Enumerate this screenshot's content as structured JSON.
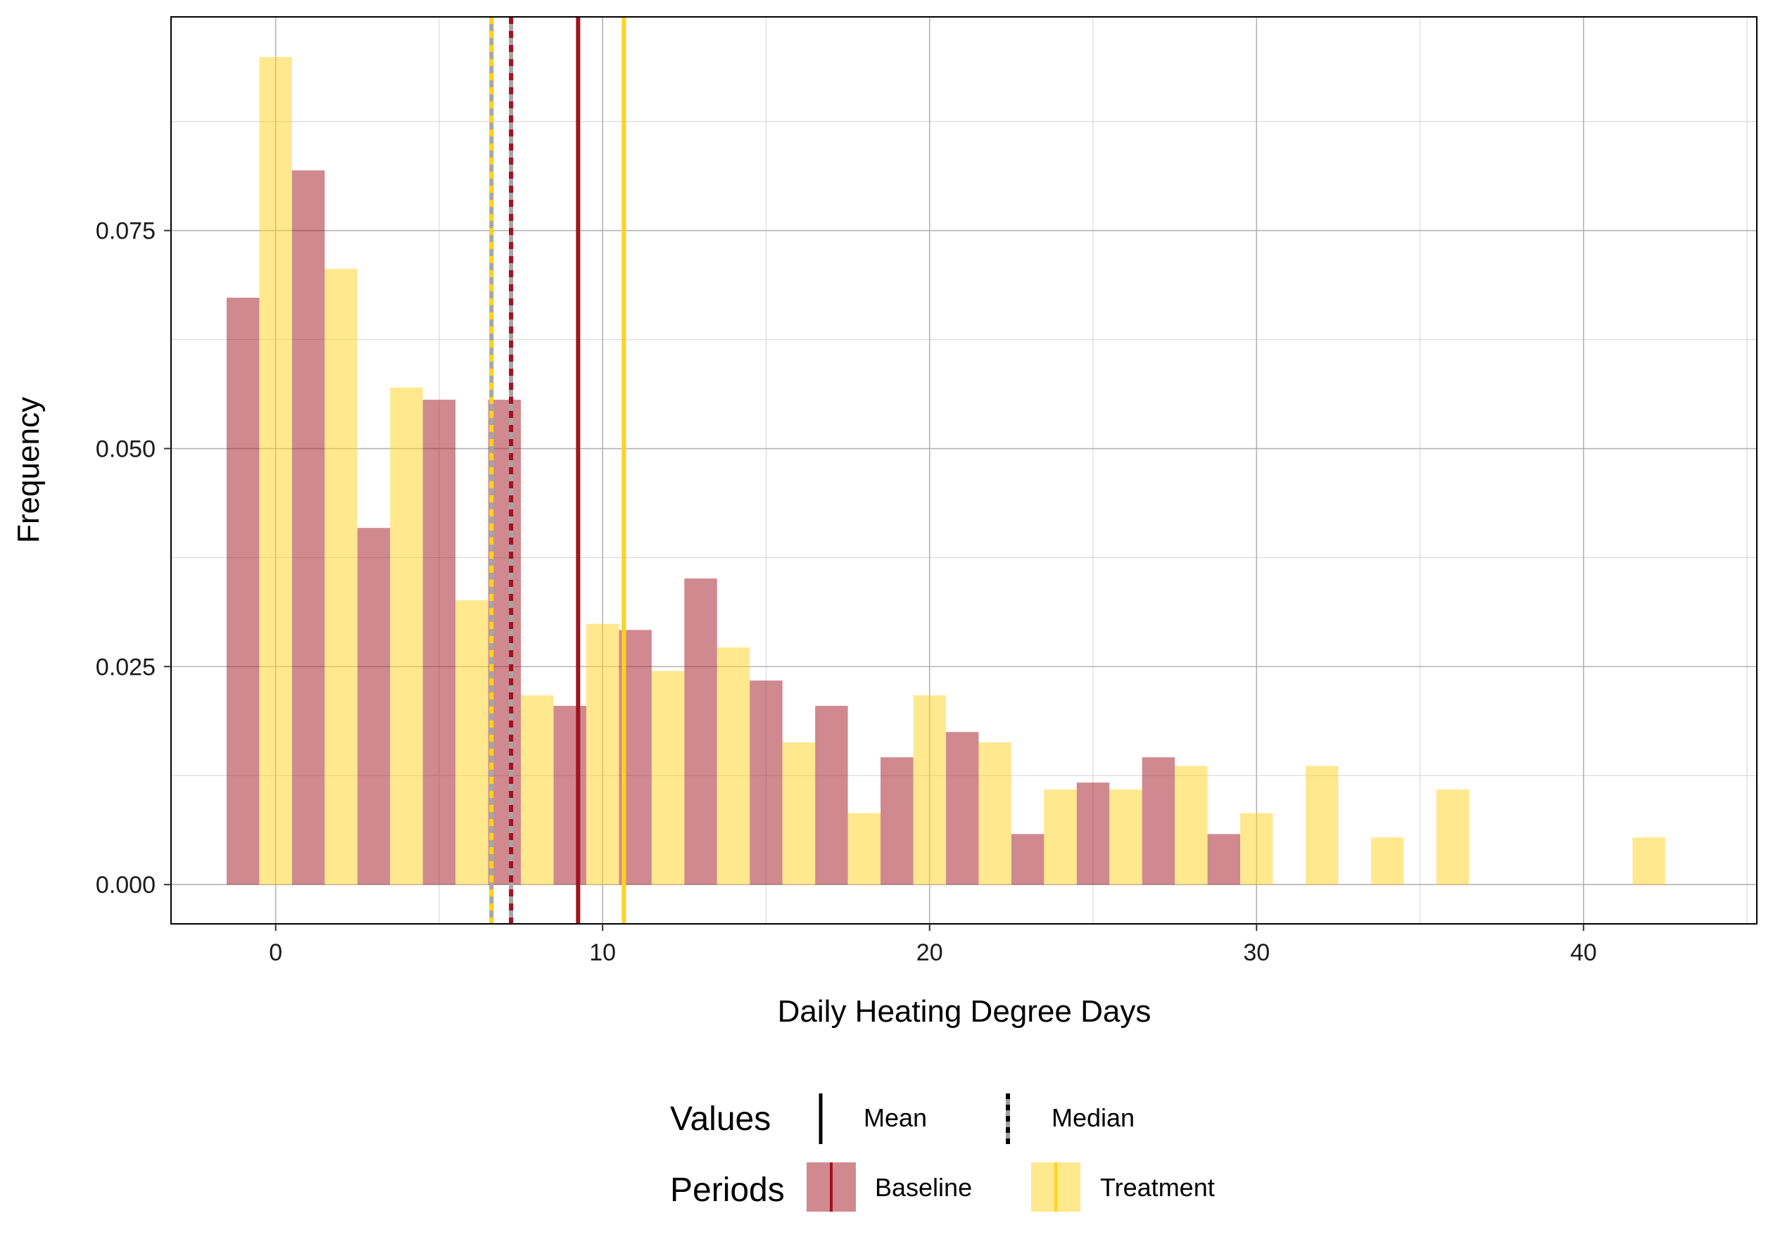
{
  "chart_data": {
    "type": "bar",
    "title": "",
    "xlabel": "Daily Heating Degree Days",
    "ylabel": "Frequency",
    "xlim": [
      -3.2,
      45.3
    ],
    "ylim": [
      -0.0045,
      0.0995
    ],
    "x_ticks": [
      0,
      10,
      20,
      30,
      40
    ],
    "x_tick_labels": [
      "0",
      "10",
      "20",
      "30",
      "40"
    ],
    "y_ticks": [
      0,
      0.025,
      0.05,
      0.075
    ],
    "y_tick_labels": [
      "0.000",
      "0.025",
      "0.050",
      "0.075"
    ],
    "grid": true,
    "bin_width": 1,
    "bar_opacity": 0.5,
    "series": [
      {
        "name": "Baseline",
        "color": "#A0131F",
        "bars": [
          {
            "x": -1,
            "value": 0.0673
          },
          {
            "x": 1,
            "value": 0.0819
          },
          {
            "x": 3,
            "value": 0.0409
          },
          {
            "x": 5,
            "value": 0.0556
          },
          {
            "x": 7,
            "value": 0.0556
          },
          {
            "x": 9,
            "value": 0.0205
          },
          {
            "x": 11,
            "value": 0.0292
          },
          {
            "x": 13,
            "value": 0.0351
          },
          {
            "x": 15,
            "value": 0.0234
          },
          {
            "x": 17,
            "value": 0.0205
          },
          {
            "x": 19,
            "value": 0.0146
          },
          {
            "x": 21,
            "value": 0.0175
          },
          {
            "x": 23,
            "value": 0.0058
          },
          {
            "x": 25,
            "value": 0.0117
          },
          {
            "x": 27,
            "value": 0.0146
          },
          {
            "x": 29,
            "value": 0.0058
          }
        ],
        "mean": 9.25,
        "median": 7.2
      },
      {
        "name": "Treatment",
        "color": "#FFD21E",
        "bars": [
          {
            "x": 0,
            "value": 0.0949
          },
          {
            "x": 2,
            "value": 0.0706
          },
          {
            "x": 4,
            "value": 0.057
          },
          {
            "x": 6,
            "value": 0.0326
          },
          {
            "x": 8,
            "value": 0.0217
          },
          {
            "x": 10,
            "value": 0.0299
          },
          {
            "x": 12,
            "value": 0.0245
          },
          {
            "x": 14,
            "value": 0.0272
          },
          {
            "x": 16,
            "value": 0.0163
          },
          {
            "x": 18,
            "value": 0.0082
          },
          {
            "x": 20,
            "value": 0.0217
          },
          {
            "x": 22,
            "value": 0.0163
          },
          {
            "x": 24,
            "value": 0.0109
          },
          {
            "x": 26,
            "value": 0.0109
          },
          {
            "x": 28,
            "value": 0.0136
          },
          {
            "x": 30,
            "value": 0.0082
          },
          {
            "x": 32,
            "value": 0.0136
          },
          {
            "x": 34,
            "value": 0.0054
          },
          {
            "x": 36,
            "value": 0.0109
          },
          {
            "x": 42,
            "value": 0.0054
          }
        ],
        "mean": 10.65,
        "median": 6.6
      }
    ],
    "legend": {
      "placement": "bottom",
      "values_title": "Values",
      "values_items": [
        "Mean",
        "Median"
      ],
      "periods_title": "Periods",
      "periods_items": [
        "Baseline",
        "Treatment"
      ]
    }
  }
}
